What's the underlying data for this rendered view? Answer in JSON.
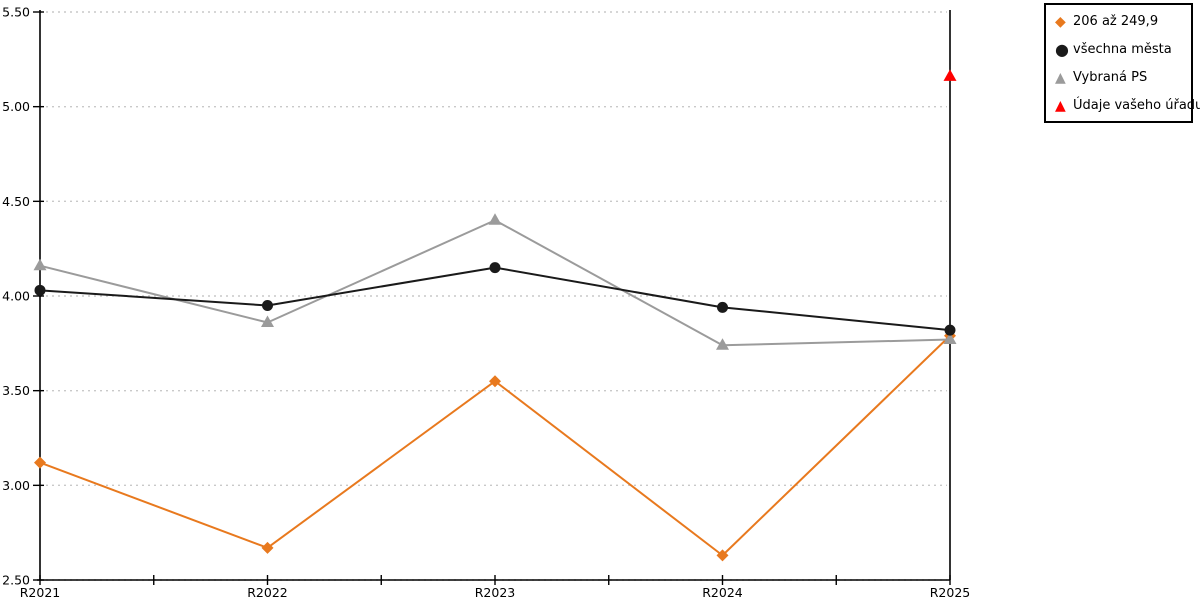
{
  "legend": {
    "items": [
      {
        "label": "206 až 249,9",
        "marker": "diamond",
        "color": "#E8791E"
      },
      {
        "label": "všechna města",
        "marker": "circle",
        "color": "#1A1A1A"
      },
      {
        "label": "Vybraná PS",
        "marker": "triangle",
        "color": "#9B9B9B"
      },
      {
        "label": "Údaje vašeho úřadu",
        "marker": "triangle",
        "color": "#FF0000"
      }
    ]
  },
  "chart_data": {
    "type": "line",
    "categories": [
      "R2021",
      "R2022",
      "R2023",
      "R2024",
      "R2025"
    ],
    "series": [
      {
        "name": "206 až 249,9",
        "marker": "diamond",
        "color": "#E8791E",
        "values": [
          3.12,
          2.67,
          3.55,
          2.63,
          3.79
        ]
      },
      {
        "name": "všechna města",
        "marker": "circle",
        "color": "#1A1A1A",
        "values": [
          4.03,
          3.95,
          4.15,
          3.94,
          3.82
        ]
      },
      {
        "name": "Vybraná PS",
        "marker": "triangle",
        "color": "#9B9B9B",
        "values": [
          4.16,
          3.86,
          4.4,
          3.74,
          3.77
        ]
      },
      {
        "name": "Údaje vašeho úřadu",
        "marker": "triangle",
        "color": "#FF0000",
        "values": [
          null,
          null,
          null,
          null,
          5.16
        ]
      }
    ],
    "title": "",
    "xlabel": "",
    "ylabel": "",
    "ylim": [
      2.5,
      5.5
    ],
    "ytick_labels": [
      "2.50",
      "3.00",
      "3.50",
      "4.00",
      "4.50",
      "5.00",
      "5.50"
    ],
    "grid": "horizontal-dotted",
    "grid_color": "#C9C9C9",
    "axis_color": "#000000",
    "legend_position": "top-right",
    "draw_order": [
      0,
      2,
      1,
      3
    ]
  }
}
